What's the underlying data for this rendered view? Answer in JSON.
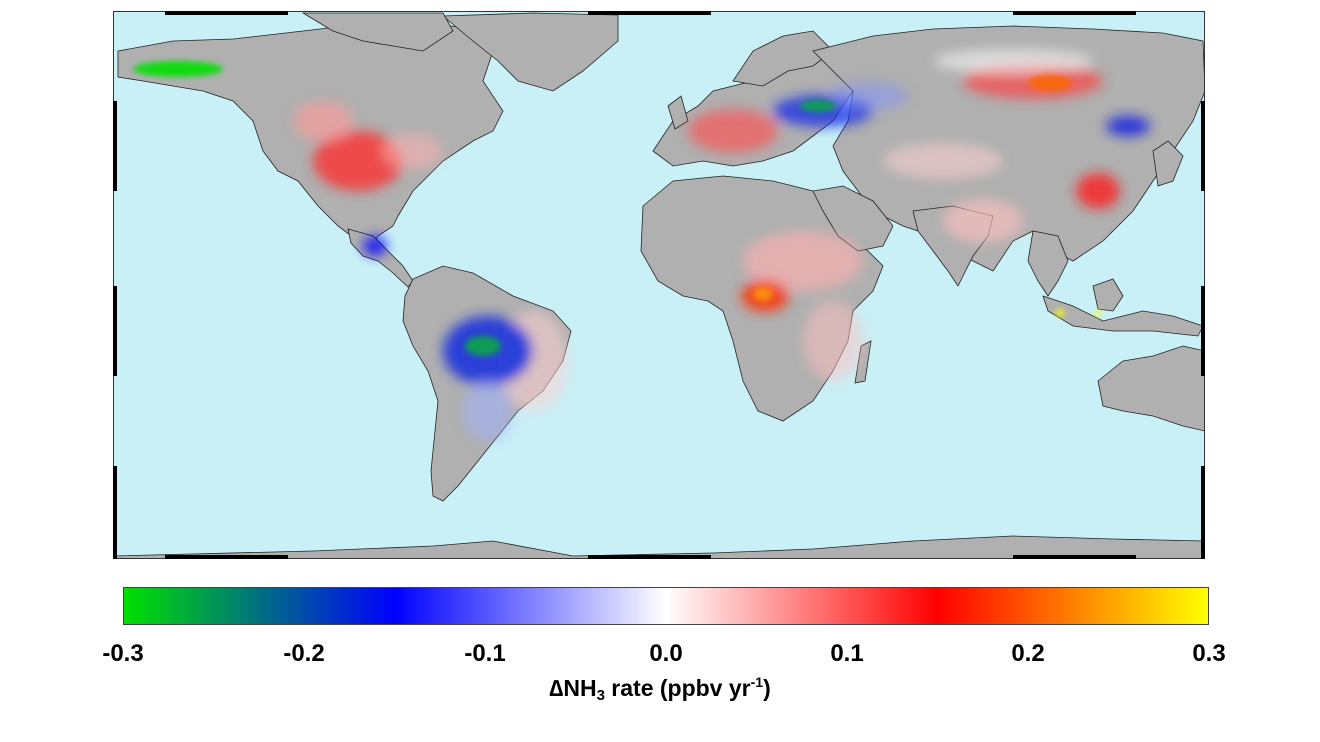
{
  "map": {
    "projection": "equirectangular global",
    "ocean_color": "#c9f0f6",
    "land_color": "#b0b0b0",
    "coastline_color": "#222222"
  },
  "colorbar": {
    "min": -0.3,
    "max": 0.3,
    "stops": [
      "#00e000",
      "#0000ff",
      "#ffffff",
      "#ff0000",
      "#ffff00"
    ],
    "ticks": [
      "-0.3",
      "-0.2",
      "-0.1",
      "0.0",
      "0.1",
      "0.2",
      "0.3"
    ]
  },
  "label": {
    "delta": "∆",
    "species": "NH",
    "subscript": "3",
    "text": " rate (ppbv yr",
    "superscript": "-1",
    "close": ")"
  },
  "hotspots": [
    {
      "region": "Central United States",
      "sign": "positive",
      "color": "#ff3030"
    },
    {
      "region": "Western Europe",
      "sign": "positive",
      "color": "#ff3a3a"
    },
    {
      "region": "Central Africa",
      "sign": "positive",
      "color": "#ff6000"
    },
    {
      "region": "North China Plain",
      "sign": "positive",
      "color": "#ff1a1a"
    },
    {
      "region": "Central Asia steppe",
      "sign": "positive",
      "color": "#ff4000"
    },
    {
      "region": "Amazon basin",
      "sign": "negative",
      "color": "#0a28e0"
    },
    {
      "region": "Ukraine / Southern Russia",
      "sign": "negative",
      "color": "#1a30e8"
    },
    {
      "region": "Central America",
      "sign": "negative",
      "color": "#0000ff"
    },
    {
      "region": "Northeast China",
      "sign": "negative",
      "color": "#1020e0"
    },
    {
      "region": "Alaska / NW Canada",
      "sign": "negative",
      "color": "#00e000"
    },
    {
      "region": "Java / Sumatra",
      "sign": "positive",
      "color": "#ffff00"
    }
  ]
}
